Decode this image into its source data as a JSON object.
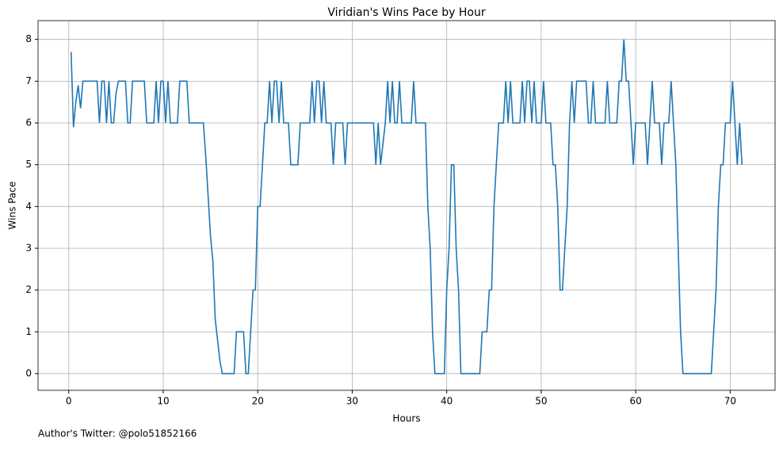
{
  "chart_data": {
    "type": "line",
    "title": "Viridian's Wins Pace by Hour",
    "x_label": "Hours",
    "y_label": "Wins Pace",
    "annotation": "Author's Twitter: @polo51852166",
    "color": "#1f77b4",
    "grid": true,
    "xlim": [
      -3.25,
      74.75
    ],
    "ylim": [
      -0.4,
      8.45
    ],
    "xticks": [
      0,
      10,
      20,
      30,
      40,
      50,
      60,
      70
    ],
    "yticks": [
      0,
      1,
      2,
      3,
      4,
      5,
      6,
      7,
      8
    ],
    "x": [
      0.25,
      0.5,
      0.75,
      1.0,
      1.25,
      1.5,
      3,
      3.25,
      3.5,
      3.75,
      4.0,
      4.25,
      4.5,
      4.75,
      5.0,
      5.25,
      6.0,
      6.25,
      6.5,
      6.75,
      8.0,
      8.25,
      9.0,
      9.25,
      9.5,
      9.75,
      10.0,
      10.25,
      10.5,
      10.75,
      11.5,
      11.75,
      12.5,
      12.75,
      14.25,
      14.5,
      15.0,
      15.25,
      15.5,
      16.0,
      16.25,
      17.5,
      17.75,
      18.5,
      18.75,
      19.0,
      19.25,
      19.5,
      19.75,
      20.0,
      20.25,
      20.75,
      21.0,
      21.25,
      21.5,
      21.75,
      22.0,
      22.25,
      22.5,
      22.75,
      23.25,
      23.5,
      24.25,
      24.5,
      25.5,
      25.75,
      26.0,
      26.25,
      26.5,
      26.75,
      27.0,
      27.25,
      27.75,
      28.0,
      28.25,
      29.0,
      29.25,
      29.5,
      32.25,
      32.5,
      32.75,
      33.0,
      33.5,
      33.75,
      34.0,
      34.25,
      34.5,
      34.75,
      35.0,
      35.25,
      36.25,
      36.5,
      36.75,
      37.75,
      38.0,
      38.25,
      38.5,
      38.75,
      39.75,
      40.0,
      40.25,
      40.5,
      40.75,
      41.0,
      41.25,
      41.5,
      43.5,
      43.75,
      44.25,
      44.5,
      44.75,
      45.0,
      45.5,
      46.0,
      46.25,
      46.5,
      46.75,
      47.0,
      47.75,
      48.0,
      48.25,
      48.5,
      48.75,
      49.0,
      49.25,
      49.5,
      50.0,
      50.25,
      50.5,
      51.0,
      51.25,
      51.5,
      51.75,
      52.0,
      52.25,
      52.75,
      53.0,
      53.25,
      53.5,
      53.75,
      54.75,
      55.0,
      55.25,
      55.5,
      55.75,
      56.75,
      57.0,
      57.25,
      58.0,
      58.25,
      58.5,
      58.75,
      59.0,
      59.25,
      59.5,
      59.75,
      60.0,
      61.0,
      61.25,
      61.5,
      61.75,
      62.0,
      62.5,
      62.75,
      63.0,
      63.5,
      63.75,
      64.0,
      64.25,
      64.75,
      65.0,
      68.0,
      68.5,
      68.75,
      69.0,
      69.25,
      69.5,
      70.0,
      70.25,
      70.5,
      70.75,
      71.0,
      71.25
    ],
    "values": [
      7.7,
      5.9,
      6.5,
      6.9,
      6.35,
      7,
      7,
      6,
      7,
      7,
      6,
      7,
      6,
      6,
      6.7,
      7,
      7,
      6,
      6,
      7,
      7,
      6,
      6,
      7,
      6,
      7,
      7,
      6,
      7,
      6,
      6,
      7,
      7,
      6,
      6,
      5.2,
      3.3,
      2.7,
      1.3,
      0.3,
      0,
      0,
      1,
      1,
      0,
      0,
      1,
      2,
      2,
      4,
      4,
      6,
      6,
      7,
      6,
      7,
      7,
      6,
      7,
      6,
      6,
      5,
      5,
      6,
      6,
      7,
      6,
      7,
      7,
      6,
      7,
      6,
      6,
      5,
      6,
      6,
      5,
      6,
      6,
      5,
      6,
      5,
      6,
      7,
      6,
      7,
      6,
      6,
      7,
      6,
      6,
      7,
      6,
      6,
      4,
      3,
      1,
      0,
      0,
      2,
      3,
      5,
      5,
      3,
      2,
      0,
      0,
      1,
      1,
      2,
      2,
      4,
      6,
      6,
      7,
      6,
      7,
      6,
      6,
      7,
      6,
      7,
      7,
      6,
      7,
      6,
      6,
      7,
      6,
      6,
      5,
      5,
      4,
      2,
      2,
      4,
      6,
      7,
      6,
      7,
      7,
      6,
      6,
      7,
      6,
      6,
      7,
      6,
      6,
      7,
      7,
      8,
      7,
      7,
      6,
      5,
      6,
      6,
      5,
      6,
      7,
      6,
      6,
      5,
      6,
      6,
      7,
      6,
      5,
      1,
      0,
      0,
      2,
      4,
      5,
      5,
      6,
      6,
      7,
      6,
      5,
      6,
      5
    ]
  }
}
